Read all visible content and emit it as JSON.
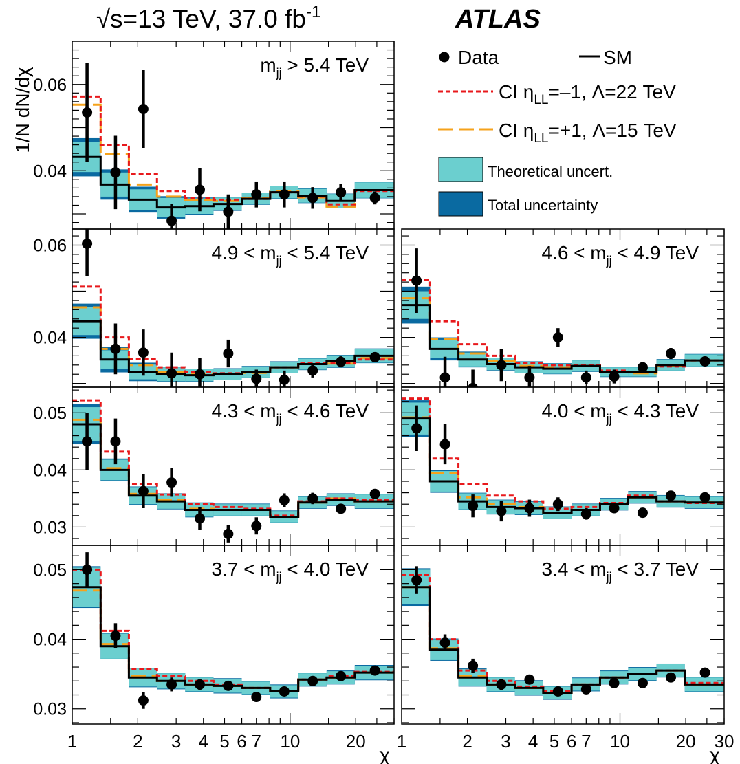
{
  "header": {
    "sqrt_symbol": "√",
    "energy": "s=13 TeV, 37.0 fb",
    "lumi_exp": "-1",
    "experiment": "ATLAS"
  },
  "ylabel": "1/N dN/dχ",
  "xlabel": "χ",
  "x_ticks": {
    "labeled": [
      1,
      2,
      3,
      4,
      5,
      6,
      7,
      10,
      20,
      30
    ],
    "labels": [
      "1",
      "2",
      "3",
      "4",
      "5",
      "6",
      "7",
      "10",
      "20",
      "30"
    ]
  },
  "legend": {
    "data": "Data",
    "sm": "SM",
    "ci_minus": {
      "pre": "CI η",
      "sub": "LL",
      "post": "=–1, Λ=22 TeV"
    },
    "ci_plus": {
      "pre": "CI η",
      "sub": "LL",
      "post": "=+1, Λ=15 TeV"
    },
    "theory": "Theoretical uncert.",
    "total": "Total uncertainty"
  },
  "colors": {
    "theory_band": "#6bcfcf",
    "total_band": "#0a6aa1",
    "ci_minus": "#e8191c",
    "ci_plus": "#f5a21b",
    "sm": "#000000",
    "data": "#000000"
  },
  "chart_data": {
    "type": "line",
    "x_scale": "log",
    "bin_edges": [
      1,
      1.35,
      1.82,
      2.45,
      3.3,
      4.45,
      6.0,
      8.1,
      10.9,
      14.7,
      19.8,
      30.0
    ],
    "bin_centers": [
      1.17,
      1.58,
      2.12,
      2.86,
      3.85,
      5.2,
      7.0,
      9.4,
      12.7,
      17.1,
      24.5
    ],
    "panels": [
      {
        "id": "p1",
        "title": {
          "pre": "m",
          "sub": "jj",
          "post": " > 5.4 TeV"
        },
        "ylim": [
          0.0265,
          0.07
        ],
        "yticks": [
          0.04,
          0.06
        ],
        "ytick_labels": [
          "0.04",
          "0.06"
        ],
        "sm": [
          0.0432,
          0.0368,
          0.0333,
          0.0315,
          0.0318,
          0.0323,
          0.0335,
          0.035,
          0.0342,
          0.033,
          0.0355
        ],
        "ci_minus": [
          0.0572,
          0.046,
          0.0393,
          0.0353,
          0.0337,
          0.0333,
          0.0335,
          0.035,
          0.034,
          0.0322,
          0.0353
        ],
        "ci_plus": [
          0.0553,
          0.0438,
          0.0368,
          0.034,
          0.0332,
          0.033,
          0.0337,
          0.0352,
          0.0338,
          0.0317,
          0.0355
        ],
        "theory_err": [
          0.0035,
          0.0028,
          0.0024,
          0.0022,
          0.0018,
          0.0015,
          0.0013,
          0.0014,
          0.0016,
          0.0016,
          0.0018
        ],
        "total_err": [
          0.0045,
          0.0035,
          0.003,
          0.0026,
          0.002,
          0.0016,
          0.0014,
          0.0015,
          0.0017,
          0.0017,
          0.0019
        ],
        "data": [
          0.0535,
          0.0396,
          0.0543,
          0.0284,
          0.0356,
          0.0305,
          0.0345,
          0.0345,
          0.0337,
          0.035,
          0.0337
        ],
        "data_err": [
          0.0115,
          0.0085,
          0.009,
          0.004,
          0.005,
          0.004,
          0.003,
          0.003,
          0.0025,
          0.002,
          0.0015
        ]
      },
      {
        "id": "p2",
        "title": {
          "pre": "4.9 < m",
          "sub": "jj",
          "post": " < 5.4 TeV"
        },
        "ylim": [
          0.0292,
          0.0635
        ],
        "yticks": [
          0.04,
          0.06
        ],
        "ytick_labels": [
          "0.04",
          "0.06"
        ],
        "sm": [
          0.0435,
          0.0352,
          0.0325,
          0.032,
          0.0318,
          0.032,
          0.0325,
          0.0335,
          0.0342,
          0.0348,
          0.036
        ],
        "ci_minus": [
          0.051,
          0.04,
          0.0353,
          0.0335,
          0.0325,
          0.0322,
          0.0325,
          0.0335,
          0.0345,
          0.0345,
          0.0352
        ],
        "ci_plus": [
          0.0465,
          0.0375,
          0.034,
          0.0325,
          0.032,
          0.032,
          0.0323,
          0.0335,
          0.0342,
          0.0343,
          0.0355
        ],
        "theory_err": [
          0.003,
          0.002,
          0.0016,
          0.0015,
          0.0013,
          0.0012,
          0.0012,
          0.0012,
          0.0012,
          0.0013,
          0.0015
        ],
        "total_err": [
          0.0038,
          0.0028,
          0.002,
          0.0016,
          0.0014,
          0.0013,
          0.0013,
          0.0013,
          0.0013,
          0.0014,
          0.0016
        ],
        "data": [
          0.0603,
          0.0375,
          0.0367,
          0.0322,
          0.032,
          0.0365,
          0.031,
          0.0308,
          0.0328,
          0.0347,
          0.0357
        ],
        "data_err": [
          0.007,
          0.0055,
          0.005,
          0.0045,
          0.0035,
          0.003,
          0.002,
          0.002,
          0.0015,
          0.0012,
          0.001
        ]
      },
      {
        "id": "p3",
        "title": {
          "pre": "4.6 < m",
          "sub": "jj",
          "post": " < 4.9 TeV"
        },
        "ylim": [
          0.0292,
          0.0635
        ],
        "yticks": [],
        "ytick_labels": [],
        "sm": [
          0.047,
          0.0375,
          0.0352,
          0.0342,
          0.0335,
          0.0332,
          0.0338,
          0.0325,
          0.0325,
          0.034,
          0.035
        ],
        "ci_minus": [
          0.0525,
          0.0435,
          0.0385,
          0.036,
          0.0345,
          0.034,
          0.034,
          0.0328,
          0.0325,
          0.0337,
          0.035
        ],
        "ci_plus": [
          0.0485,
          0.0397,
          0.0365,
          0.0348,
          0.0338,
          0.0335,
          0.0338,
          0.0325,
          0.0322,
          0.0338,
          0.035
        ],
        "theory_err": [
          0.003,
          0.002,
          0.0015,
          0.0013,
          0.0012,
          0.0011,
          0.0012,
          0.001,
          0.001,
          0.0012,
          0.0013
        ],
        "total_err": [
          0.004,
          0.0025,
          0.0017,
          0.0014,
          0.0013,
          0.0012,
          0.0013,
          0.0011,
          0.0011,
          0.0013,
          0.0014
        ],
        "data": [
          0.0523,
          0.0313,
          0.029,
          0.034,
          0.0313,
          0.04,
          0.0313,
          0.0315,
          0.0335,
          0.0365,
          0.0348
        ],
        "data_err": [
          0.007,
          0.0045,
          0.004,
          0.0035,
          0.0025,
          0.002,
          0.0015,
          0.0015,
          0.0012,
          0.0012,
          0.001
        ]
      },
      {
        "id": "p4",
        "title": {
          "pre": "4.3 < m",
          "sub": "jj",
          "post": " < 4.6 TeV"
        },
        "ylim": [
          0.0268,
          0.0545
        ],
        "yticks": [
          0.03,
          0.04,
          0.05
        ],
        "ytick_labels": [
          "0.03",
          "0.04",
          "0.05"
        ],
        "sm": [
          0.048,
          0.04,
          0.0355,
          0.0345,
          0.033,
          0.033,
          0.033,
          0.0318,
          0.0343,
          0.0348,
          0.0345
        ],
        "ci_minus": [
          0.0522,
          0.0432,
          0.0375,
          0.0357,
          0.034,
          0.0335,
          0.0332,
          0.032,
          0.0345,
          0.035,
          0.0347
        ],
        "ci_plus": [
          0.0488,
          0.0403,
          0.0358,
          0.0347,
          0.0332,
          0.033,
          0.033,
          0.0318,
          0.0343,
          0.035,
          0.0345
        ],
        "theory_err": [
          0.003,
          0.0018,
          0.0015,
          0.0013,
          0.0012,
          0.001,
          0.001,
          0.001,
          0.001,
          0.001,
          0.0012
        ],
        "total_err": [
          0.0035,
          0.002,
          0.0016,
          0.0014,
          0.0013,
          0.0011,
          0.0011,
          0.0011,
          0.0011,
          0.0011,
          0.0013
        ],
        "data": [
          0.045,
          0.045,
          0.0363,
          0.0378,
          0.0315,
          0.0288,
          0.0302,
          0.0347,
          0.035,
          0.0332,
          0.0358
        ],
        "data_err": [
          0.005,
          0.004,
          0.003,
          0.0025,
          0.002,
          0.0015,
          0.0015,
          0.0012,
          0.001,
          0.0008,
          0.0008
        ]
      },
      {
        "id": "p5",
        "title": {
          "pre": "4.0 < m",
          "sub": "jj",
          "post": " < 4.3 TeV"
        },
        "ylim": [
          0.0268,
          0.0545
        ],
        "yticks": [],
        "ytick_labels": [],
        "sm": [
          0.049,
          0.038,
          0.0345,
          0.0335,
          0.0333,
          0.0325,
          0.033,
          0.034,
          0.0352,
          0.0345,
          0.0343
        ],
        "ci_minus": [
          0.0525,
          0.042,
          0.0375,
          0.0355,
          0.0345,
          0.0332,
          0.0335,
          0.0342,
          0.0355,
          0.0345,
          0.0342
        ],
        "ci_plus": [
          0.0492,
          0.0395,
          0.0352,
          0.034,
          0.0335,
          0.0325,
          0.033,
          0.034,
          0.0352,
          0.0345,
          0.0343
        ],
        "theory_err": [
          0.0028,
          0.0018,
          0.0014,
          0.0012,
          0.0011,
          0.001,
          0.001,
          0.001,
          0.001,
          0.001,
          0.001
        ],
        "total_err": [
          0.0032,
          0.002,
          0.0015,
          0.0013,
          0.0012,
          0.0011,
          0.0011,
          0.0011,
          0.0011,
          0.0011,
          0.0011
        ],
        "data": [
          0.0473,
          0.0445,
          0.0337,
          0.0328,
          0.0333,
          0.034,
          0.0323,
          0.0333,
          0.0325,
          0.0355,
          0.0352
        ],
        "data_err": [
          0.004,
          0.0035,
          0.002,
          0.0018,
          0.0015,
          0.0012,
          0.001,
          0.0008,
          0.0006,
          0.0006,
          0.0005
        ]
      },
      {
        "id": "p6",
        "title": {
          "pre": "3.7 < m",
          "sub": "jj",
          "post": " < 4.0 TeV"
        },
        "ylim": [
          0.0278,
          0.0535
        ],
        "yticks": [
          0.03,
          0.04,
          0.05
        ],
        "ytick_labels": [
          "0.03",
          "0.04",
          "0.05"
        ],
        "sm": [
          0.0475,
          0.039,
          0.0345,
          0.034,
          0.0335,
          0.0333,
          0.033,
          0.0325,
          0.0342,
          0.0345,
          0.0352
        ],
        "ci_minus": [
          0.05,
          0.0412,
          0.0357,
          0.0347,
          0.034,
          0.0335,
          0.033,
          0.0325,
          0.0342,
          0.0347,
          0.0353
        ],
        "ci_plus": [
          0.047,
          0.0393,
          0.0347,
          0.034,
          0.0335,
          0.0333,
          0.033,
          0.0325,
          0.0342,
          0.0345,
          0.0352
        ],
        "theory_err": [
          0.0028,
          0.0018,
          0.0013,
          0.0011,
          0.001,
          0.001,
          0.0009,
          0.0009,
          0.0009,
          0.0009,
          0.001
        ],
        "total_err": [
          0.003,
          0.0019,
          0.0014,
          0.0012,
          0.0011,
          0.0011,
          0.001,
          0.001,
          0.001,
          0.001,
          0.0011
        ],
        "data": [
          0.05,
          0.0405,
          0.0312,
          0.0335,
          0.0335,
          0.0333,
          0.0317,
          0.0325,
          0.034,
          0.0347,
          0.0355
        ],
        "data_err": [
          0.0025,
          0.0018,
          0.0012,
          0.001,
          0.0008,
          0.0007,
          0.0005,
          0.0005,
          0.0004,
          0.0004,
          0.0004
        ]
      },
      {
        "id": "p7",
        "title": {
          "pre": "3.4 < m",
          "sub": "jj",
          "post": " < 3.7 TeV"
        },
        "ylim": [
          0.0278,
          0.0535
        ],
        "yticks": [],
        "ytick_labels": [],
        "sm": [
          0.0475,
          0.0385,
          0.0345,
          0.0335,
          0.033,
          0.0323,
          0.0335,
          0.0345,
          0.035,
          0.0355,
          0.0335
        ],
        "ci_minus": [
          0.0492,
          0.04,
          0.0355,
          0.034,
          0.0332,
          0.0325,
          0.0335,
          0.0345,
          0.035,
          0.0355,
          0.0337
        ],
        "ci_plus": [
          0.0475,
          0.0387,
          0.0347,
          0.0335,
          0.033,
          0.0323,
          0.0335,
          0.0345,
          0.035,
          0.0355,
          0.0335
        ],
        "theory_err": [
          0.0025,
          0.0015,
          0.0012,
          0.001,
          0.001,
          0.0009,
          0.0009,
          0.0009,
          0.0009,
          0.0009,
          0.001
        ],
        "total_err": [
          0.0027,
          0.0016,
          0.0013,
          0.0011,
          0.0011,
          0.001,
          0.001,
          0.001,
          0.001,
          0.001,
          0.0011
        ],
        "data": [
          0.0485,
          0.0395,
          0.0362,
          0.0335,
          0.0342,
          0.0325,
          0.0328,
          0.0337,
          0.0337,
          0.0345,
          0.0352
        ],
        "data_err": [
          0.002,
          0.0012,
          0.001,
          0.0008,
          0.0006,
          0.0005,
          0.0005,
          0.0004,
          0.0004,
          0.0004,
          0.0004
        ]
      }
    ]
  }
}
